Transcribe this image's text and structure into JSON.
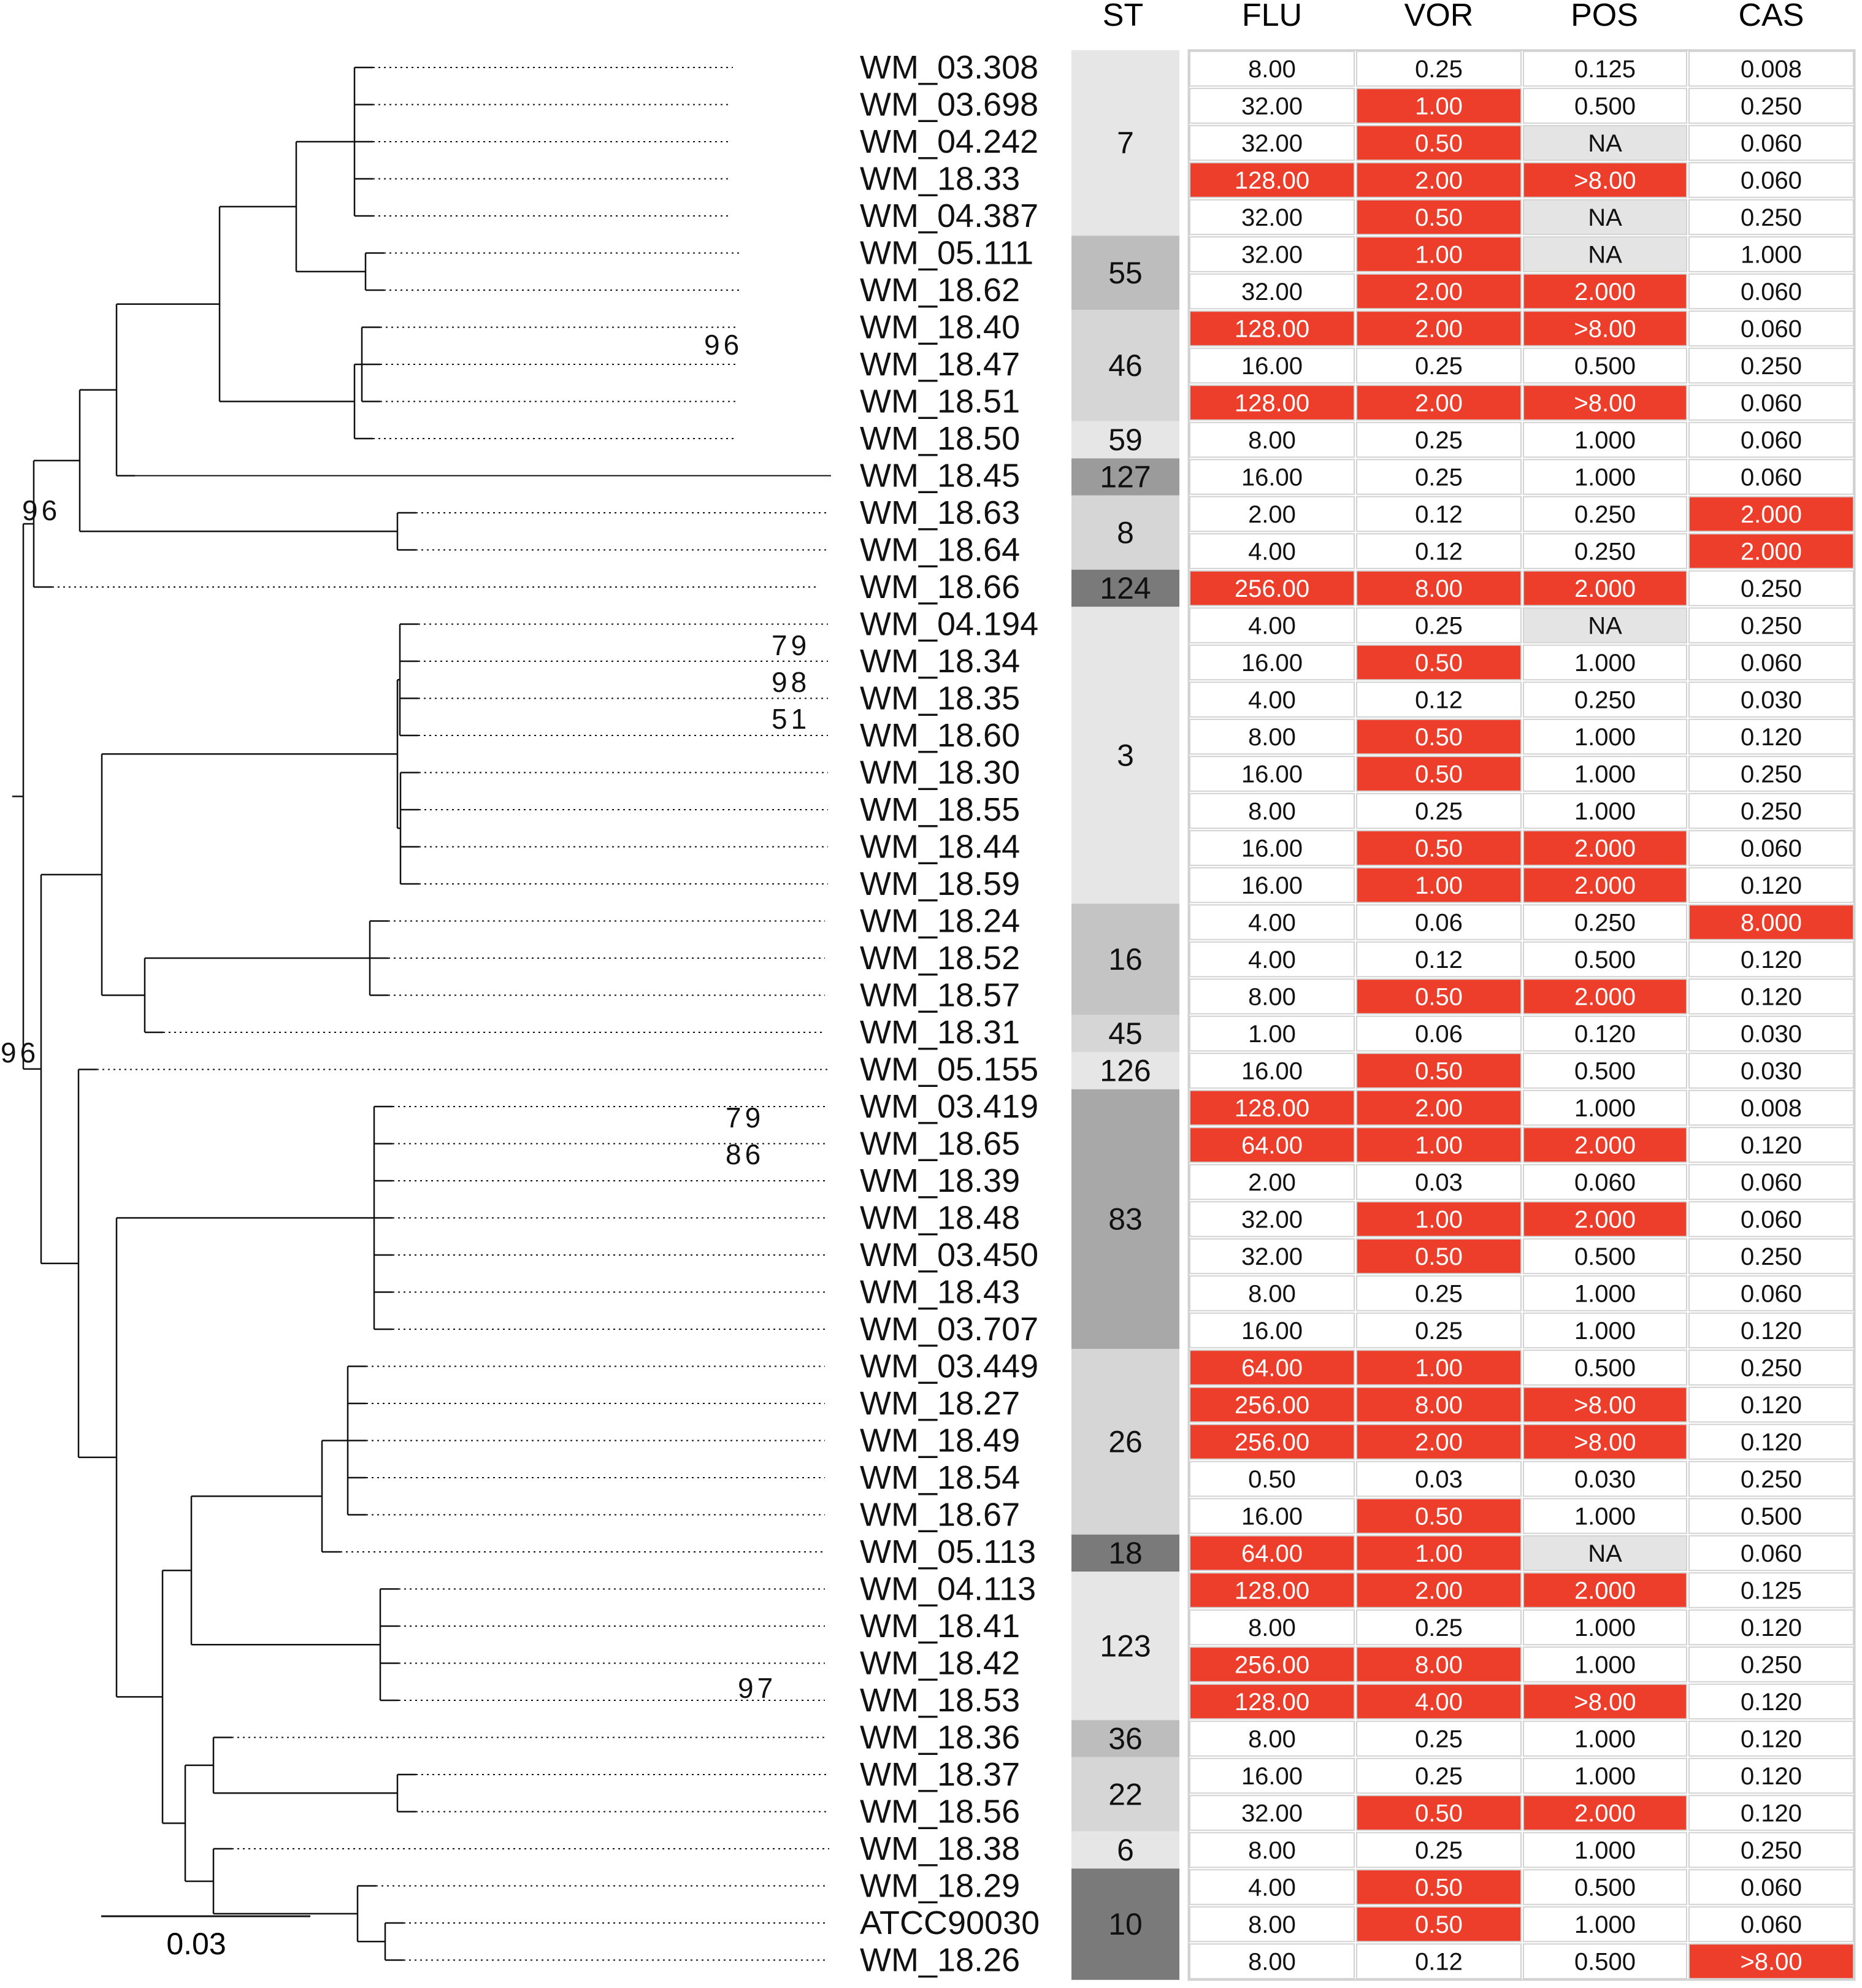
{
  "headers": {
    "st": "ST",
    "flu": "FLU",
    "vor": "VOR",
    "pos": "POS",
    "cas": "CAS"
  },
  "scale_bar": {
    "label": "0.03"
  },
  "colors": {
    "resistant": "#EC3E2A",
    "na": "#E4E4E4",
    "border": "#D2D2D2",
    "tree": "#111111"
  },
  "bootstrap": [
    {
      "near": "WM_18.40",
      "label": "96"
    },
    {
      "near": "root-upper",
      "label": "96"
    },
    {
      "near": "WM_04.194",
      "label": "79"
    },
    {
      "near": "WM_18.34",
      "label": "98"
    },
    {
      "near": "WM_18.35",
      "label": "51"
    },
    {
      "near": "root-lower",
      "label": "96"
    },
    {
      "near": "WM_03.419",
      "label": "79"
    },
    {
      "near": "WM_18.65",
      "label": "86"
    },
    {
      "near": "WM_18.53",
      "label": "97"
    }
  ],
  "st_groups": [
    {
      "label": "7",
      "start": 0,
      "count": 5,
      "shade": "#E6E6E6"
    },
    {
      "label": "55",
      "start": 5,
      "count": 2,
      "shade": "#BDBDBD"
    },
    {
      "label": "46",
      "start": 7,
      "count": 3,
      "shade": "#D6D6D6"
    },
    {
      "label": "59",
      "start": 10,
      "count": 1,
      "shade": "#E6E6E6"
    },
    {
      "label": "127",
      "start": 11,
      "count": 1,
      "shade": "#9B9B9B"
    },
    {
      "label": "8",
      "start": 12,
      "count": 2,
      "shade": "#D6D6D6"
    },
    {
      "label": "124",
      "start": 14,
      "count": 1,
      "shade": "#7A7A7A"
    },
    {
      "label": "3",
      "start": 15,
      "count": 8,
      "shade": "#E6E6E6"
    },
    {
      "label": "16",
      "start": 23,
      "count": 3,
      "shade": "#C4C4C4"
    },
    {
      "label": "45",
      "start": 26,
      "count": 1,
      "shade": "#D6D6D6"
    },
    {
      "label": "126",
      "start": 27,
      "count": 1,
      "shade": "#E6E6E6"
    },
    {
      "label": "83",
      "start": 28,
      "count": 7,
      "shade": "#A8A8A8"
    },
    {
      "label": "26",
      "start": 35,
      "count": 5,
      "shade": "#D6D6D6"
    },
    {
      "label": "18",
      "start": 40,
      "count": 1,
      "shade": "#7A7A7A"
    },
    {
      "label": "123",
      "start": 41,
      "count": 4,
      "shade": "#E6E6E6"
    },
    {
      "label": "36",
      "start": 45,
      "count": 1,
      "shade": "#BDBDBD"
    },
    {
      "label": "22",
      "start": 46,
      "count": 2,
      "shade": "#D6D6D6"
    },
    {
      "label": "6",
      "start": 48,
      "count": 1,
      "shade": "#E6E6E6"
    },
    {
      "label": "10",
      "start": 49,
      "count": 3,
      "shade": "#7A7A7A"
    }
  ],
  "isolates": [
    {
      "name": "WM_03.308",
      "flu": "8.00",
      "vor": "0.25",
      "pos": "0.125",
      "cas": "0.008",
      "r": [
        0,
        0,
        0,
        0
      ]
    },
    {
      "name": "WM_03.698",
      "flu": "32.00",
      "vor": "1.00",
      "pos": "0.500",
      "cas": "0.250",
      "r": [
        0,
        1,
        0,
        0
      ]
    },
    {
      "name": "WM_04.242",
      "flu": "32.00",
      "vor": "0.50",
      "pos": "NA",
      "cas": "0.060",
      "r": [
        0,
        1,
        0,
        0
      ]
    },
    {
      "name": "WM_18.33",
      "flu": "128.00",
      "vor": "2.00",
      "pos": ">8.00",
      "cas": "0.060",
      "r": [
        1,
        1,
        1,
        0
      ]
    },
    {
      "name": "WM_04.387",
      "flu": "32.00",
      "vor": "0.50",
      "pos": "NA",
      "cas": "0.250",
      "r": [
        0,
        1,
        0,
        0
      ]
    },
    {
      "name": "WM_05.111",
      "flu": "32.00",
      "vor": "1.00",
      "pos": "NA",
      "cas": "1.000",
      "r": [
        0,
        1,
        0,
        0
      ]
    },
    {
      "name": "WM_18.62",
      "flu": "32.00",
      "vor": "2.00",
      "pos": "2.000",
      "cas": "0.060",
      "r": [
        0,
        1,
        1,
        0
      ]
    },
    {
      "name": "WM_18.40",
      "flu": "128.00",
      "vor": "2.00",
      "pos": ">8.00",
      "cas": "0.060",
      "r": [
        1,
        1,
        1,
        0
      ]
    },
    {
      "name": "WM_18.47",
      "flu": "16.00",
      "vor": "0.25",
      "pos": "0.500",
      "cas": "0.250",
      "r": [
        0,
        0,
        0,
        0
      ]
    },
    {
      "name": "WM_18.51",
      "flu": "128.00",
      "vor": "2.00",
      "pos": ">8.00",
      "cas": "0.060",
      "r": [
        1,
        1,
        1,
        0
      ]
    },
    {
      "name": "WM_18.50",
      "flu": "8.00",
      "vor": "0.25",
      "pos": "1.000",
      "cas": "0.060",
      "r": [
        0,
        0,
        0,
        0
      ]
    },
    {
      "name": "WM_18.45",
      "flu": "16.00",
      "vor": "0.25",
      "pos": "1.000",
      "cas": "0.060",
      "r": [
        0,
        0,
        0,
        0
      ]
    },
    {
      "name": "WM_18.63",
      "flu": "2.00",
      "vor": "0.12",
      "pos": "0.250",
      "cas": "2.000",
      "r": [
        0,
        0,
        0,
        1
      ]
    },
    {
      "name": "WM_18.64",
      "flu": "4.00",
      "vor": "0.12",
      "pos": "0.250",
      "cas": "2.000",
      "r": [
        0,
        0,
        0,
        1
      ]
    },
    {
      "name": "WM_18.66",
      "flu": "256.00",
      "vor": "8.00",
      "pos": "2.000",
      "cas": "0.250",
      "r": [
        1,
        1,
        1,
        0
      ]
    },
    {
      "name": "WM_04.194",
      "flu": "4.00",
      "vor": "0.25",
      "pos": "NA",
      "cas": "0.250",
      "r": [
        0,
        0,
        0,
        0
      ]
    },
    {
      "name": "WM_18.34",
      "flu": "16.00",
      "vor": "0.50",
      "pos": "1.000",
      "cas": "0.060",
      "r": [
        0,
        1,
        0,
        0
      ]
    },
    {
      "name": "WM_18.35",
      "flu": "4.00",
      "vor": "0.12",
      "pos": "0.250",
      "cas": "0.030",
      "r": [
        0,
        0,
        0,
        0
      ]
    },
    {
      "name": "WM_18.60",
      "flu": "8.00",
      "vor": "0.50",
      "pos": "1.000",
      "cas": "0.120",
      "r": [
        0,
        1,
        0,
        0
      ]
    },
    {
      "name": "WM_18.30",
      "flu": "16.00",
      "vor": "0.50",
      "pos": "1.000",
      "cas": "0.250",
      "r": [
        0,
        1,
        0,
        0
      ]
    },
    {
      "name": "WM_18.55",
      "flu": "8.00",
      "vor": "0.25",
      "pos": "1.000",
      "cas": "0.250",
      "r": [
        0,
        0,
        0,
        0
      ]
    },
    {
      "name": "WM_18.44",
      "flu": "16.00",
      "vor": "0.50",
      "pos": "2.000",
      "cas": "0.060",
      "r": [
        0,
        1,
        1,
        0
      ]
    },
    {
      "name": "WM_18.59",
      "flu": "16.00",
      "vor": "1.00",
      "pos": "2.000",
      "cas": "0.120",
      "r": [
        0,
        1,
        1,
        0
      ]
    },
    {
      "name": "WM_18.24",
      "flu": "4.00",
      "vor": "0.06",
      "pos": "0.250",
      "cas": "8.000",
      "r": [
        0,
        0,
        0,
        1
      ]
    },
    {
      "name": "WM_18.52",
      "flu": "4.00",
      "vor": "0.12",
      "pos": "0.500",
      "cas": "0.120",
      "r": [
        0,
        0,
        0,
        0
      ]
    },
    {
      "name": "WM_18.57",
      "flu": "8.00",
      "vor": "0.50",
      "pos": "2.000",
      "cas": "0.120",
      "r": [
        0,
        1,
        1,
        0
      ]
    },
    {
      "name": "WM_18.31",
      "flu": "1.00",
      "vor": "0.06",
      "pos": "0.120",
      "cas": "0.030",
      "r": [
        0,
        0,
        0,
        0
      ]
    },
    {
      "name": "WM_05.155",
      "flu": "16.00",
      "vor": "0.50",
      "pos": "0.500",
      "cas": "0.030",
      "r": [
        0,
        1,
        0,
        0
      ]
    },
    {
      "name": "WM_03.419",
      "flu": "128.00",
      "vor": "2.00",
      "pos": "1.000",
      "cas": "0.008",
      "r": [
        1,
        1,
        0,
        0
      ]
    },
    {
      "name": "WM_18.65",
      "flu": "64.00",
      "vor": "1.00",
      "pos": "2.000",
      "cas": "0.120",
      "r": [
        1,
        1,
        1,
        0
      ]
    },
    {
      "name": "WM_18.39",
      "flu": "2.00",
      "vor": "0.03",
      "pos": "0.060",
      "cas": "0.060",
      "r": [
        0,
        0,
        0,
        0
      ]
    },
    {
      "name": "WM_18.48",
      "flu": "32.00",
      "vor": "1.00",
      "pos": "2.000",
      "cas": "0.060",
      "r": [
        0,
        1,
        1,
        0
      ]
    },
    {
      "name": "WM_03.450",
      "flu": "32.00",
      "vor": "0.50",
      "pos": "0.500",
      "cas": "0.250",
      "r": [
        0,
        1,
        0,
        0
      ]
    },
    {
      "name": "WM_18.43",
      "flu": "8.00",
      "vor": "0.25",
      "pos": "1.000",
      "cas": "0.060",
      "r": [
        0,
        0,
        0,
        0
      ]
    },
    {
      "name": "WM_03.707",
      "flu": "16.00",
      "vor": "0.25",
      "pos": "1.000",
      "cas": "0.120",
      "r": [
        0,
        0,
        0,
        0
      ]
    },
    {
      "name": "WM_03.449",
      "flu": "64.00",
      "vor": "1.00",
      "pos": "0.500",
      "cas": "0.250",
      "r": [
        1,
        1,
        0,
        0
      ]
    },
    {
      "name": "WM_18.27",
      "flu": "256.00",
      "vor": "8.00",
      "pos": ">8.00",
      "cas": "0.120",
      "r": [
        1,
        1,
        1,
        0
      ]
    },
    {
      "name": "WM_18.49",
      "flu": "256.00",
      "vor": "2.00",
      "pos": ">8.00",
      "cas": "0.120",
      "r": [
        1,
        1,
        1,
        0
      ]
    },
    {
      "name": "WM_18.54",
      "flu": "0.50",
      "vor": "0.03",
      "pos": "0.030",
      "cas": "0.250",
      "r": [
        0,
        0,
        0,
        0
      ]
    },
    {
      "name": "WM_18.67",
      "flu": "16.00",
      "vor": "0.50",
      "pos": "1.000",
      "cas": "0.500",
      "r": [
        0,
        1,
        0,
        0
      ]
    },
    {
      "name": "WM_05.113",
      "flu": "64.00",
      "vor": "1.00",
      "pos": "NA",
      "cas": "0.060",
      "r": [
        1,
        1,
        0,
        0
      ]
    },
    {
      "name": "WM_04.113",
      "flu": "128.00",
      "vor": "2.00",
      "pos": "2.000",
      "cas": "0.125",
      "r": [
        1,
        1,
        1,
        0
      ]
    },
    {
      "name": "WM_18.41",
      "flu": "8.00",
      "vor": "0.25",
      "pos": "1.000",
      "cas": "0.120",
      "r": [
        0,
        0,
        0,
        0
      ]
    },
    {
      "name": "WM_18.42",
      "flu": "256.00",
      "vor": "8.00",
      "pos": "1.000",
      "cas": "0.250",
      "r": [
        1,
        1,
        0,
        0
      ]
    },
    {
      "name": "WM_18.53",
      "flu": "128.00",
      "vor": "4.00",
      "pos": ">8.00",
      "cas": "0.120",
      "r": [
        1,
        1,
        1,
        0
      ]
    },
    {
      "name": "WM_18.36",
      "flu": "8.00",
      "vor": "0.25",
      "pos": "1.000",
      "cas": "0.120",
      "r": [
        0,
        0,
        0,
        0
      ]
    },
    {
      "name": "WM_18.37",
      "flu": "16.00",
      "vor": "0.25",
      "pos": "1.000",
      "cas": "0.120",
      "r": [
        0,
        0,
        0,
        0
      ]
    },
    {
      "name": "WM_18.56",
      "flu": "32.00",
      "vor": "0.50",
      "pos": "2.000",
      "cas": "0.120",
      "r": [
        0,
        1,
        1,
        0
      ]
    },
    {
      "name": "WM_18.38",
      "flu": "8.00",
      "vor": "0.25",
      "pos": "1.000",
      "cas": "0.250",
      "r": [
        0,
        0,
        0,
        0
      ]
    },
    {
      "name": "WM_18.29",
      "flu": "4.00",
      "vor": "0.50",
      "pos": "0.500",
      "cas": "0.060",
      "r": [
        0,
        1,
        0,
        0
      ]
    },
    {
      "name": "ATCC90030",
      "flu": "8.00",
      "vor": "0.50",
      "pos": "1.000",
      "cas": "0.060",
      "r": [
        0,
        1,
        0,
        0
      ]
    },
    {
      "name": "WM_18.26",
      "flu": "8.00",
      "vor": "0.12",
      "pos": "0.500",
      "cas": ">8.00",
      "r": [
        0,
        0,
        0,
        1
      ]
    }
  ]
}
